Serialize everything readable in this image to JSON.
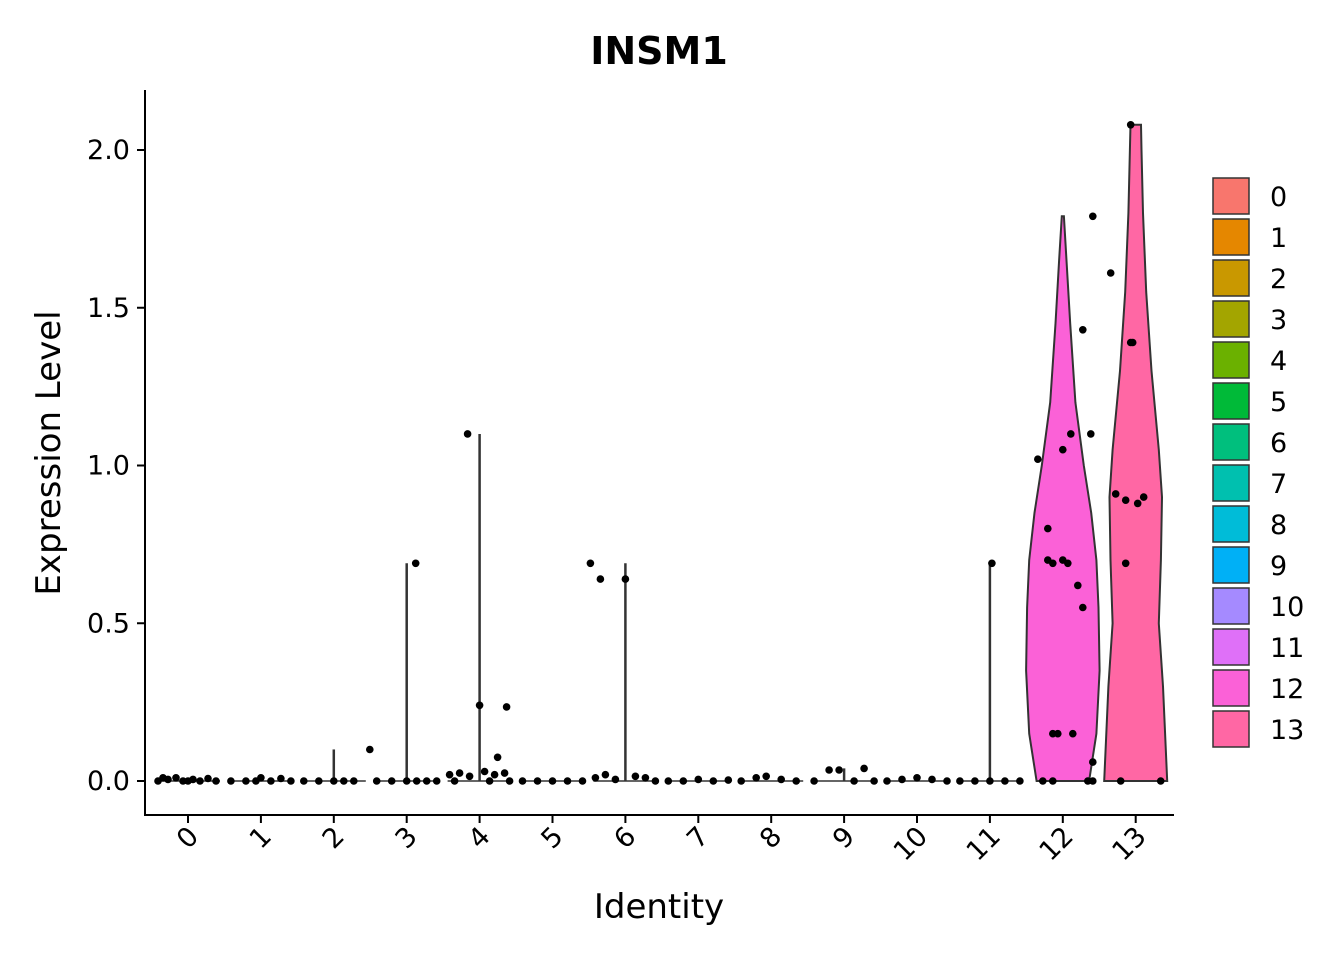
{
  "chart_data": {
    "type": "violin",
    "title": "INSM1",
    "xlabel": "Identity",
    "ylabel": "Expression Level",
    "ylim": [
      -0.11,
      2.19
    ],
    "yticks": [
      0.0,
      0.5,
      1.0,
      1.5,
      2.0
    ],
    "ytick_labels": [
      "0.0",
      "0.5",
      "1.0",
      "1.5",
      "2.0"
    ],
    "legend_placement": "right",
    "grid": false,
    "categories": [
      "0",
      "1",
      "2",
      "3",
      "4",
      "5",
      "6",
      "7",
      "8",
      "9",
      "10",
      "11",
      "12",
      "13"
    ],
    "colors": [
      "#F8766D",
      "#E58700",
      "#C99800",
      "#A3A500",
      "#6BB100",
      "#00BA38",
      "#00BF7D",
      "#00C0AF",
      "#00BCD8",
      "#00B0F6",
      "#A58AFF",
      "#DF70F8",
      "#FB61D7",
      "#FF67A4"
    ],
    "groups": [
      {
        "name": "0",
        "max": 0.01,
        "points": [
          [
            -0.3,
            0
          ],
          [
            -0.2,
            0.005
          ],
          [
            -0.12,
            0.01
          ],
          [
            -0.05,
            0
          ],
          [
            0.05,
            0.005
          ],
          [
            0.12,
            0
          ],
          [
            0.2,
            0.008
          ],
          [
            0.28,
            0
          ],
          [
            -0.25,
            0.01
          ],
          [
            0.0,
            0
          ]
        ]
      },
      {
        "name": "1",
        "max": 0.01,
        "points": [
          [
            -0.3,
            0
          ],
          [
            -0.15,
            0
          ],
          [
            0.0,
            0.01
          ],
          [
            0.1,
            0
          ],
          [
            0.2,
            0.008
          ],
          [
            0.3,
            0
          ],
          [
            -0.05,
            0
          ]
        ]
      },
      {
        "name": "2",
        "max": 0.1,
        "points": [
          [
            -0.3,
            0
          ],
          [
            -0.15,
            0
          ],
          [
            0.0,
            0
          ],
          [
            0.1,
            0
          ],
          [
            0.2,
            0
          ],
          [
            0.36,
            0.1
          ]
        ]
      },
      {
        "name": "3",
        "max": 0.69,
        "points": [
          [
            -0.3,
            0
          ],
          [
            -0.15,
            0
          ],
          [
            0.0,
            0
          ],
          [
            0.1,
            0
          ],
          [
            0.2,
            0
          ],
          [
            0.3,
            0
          ],
          [
            0.09,
            0.69
          ]
        ]
      },
      {
        "name": "4",
        "max": 1.1,
        "points": [
          [
            -0.12,
            1.1
          ],
          [
            0.27,
            0.235
          ],
          [
            0.18,
            0.075
          ],
          [
            0.0,
            0.24
          ],
          [
            -0.3,
            0.02
          ],
          [
            -0.2,
            0.025
          ],
          [
            -0.1,
            0.015
          ],
          [
            0.05,
            0.03
          ],
          [
            0.15,
            0.02
          ],
          [
            0.25,
            0.025
          ],
          [
            0.3,
            0
          ],
          [
            -0.25,
            0
          ],
          [
            0.1,
            0
          ]
        ]
      },
      {
        "name": "5",
        "max": 0.0,
        "points": [
          [
            -0.3,
            0
          ],
          [
            -0.15,
            0
          ],
          [
            0.0,
            0
          ],
          [
            0.15,
            0
          ],
          [
            0.3,
            0
          ]
        ]
      },
      {
        "name": "6",
        "max": 0.69,
        "points": [
          [
            -0.35,
            0.69
          ],
          [
            -0.25,
            0.64
          ],
          [
            0.0,
            0.64
          ],
          [
            -0.3,
            0.01
          ],
          [
            -0.2,
            0.02
          ],
          [
            -0.1,
            0.005
          ],
          [
            0.1,
            0.015
          ],
          [
            0.2,
            0.01
          ],
          [
            0.3,
            0
          ]
        ]
      },
      {
        "name": "7",
        "max": 0.005,
        "points": [
          [
            -0.3,
            0
          ],
          [
            -0.15,
            0
          ],
          [
            0.0,
            0.005
          ],
          [
            0.15,
            0
          ],
          [
            0.3,
            0.003
          ]
        ]
      },
      {
        "name": "8",
        "max": 0.015,
        "points": [
          [
            -0.3,
            0
          ],
          [
            -0.15,
            0.01
          ],
          [
            -0.05,
            0.015
          ],
          [
            0.1,
            0.005
          ],
          [
            0.25,
            0
          ]
        ]
      },
      {
        "name": "9",
        "max": 0.04,
        "points": [
          [
            -0.3,
            0
          ],
          [
            -0.15,
            0.035
          ],
          [
            -0.05,
            0.035
          ],
          [
            0.2,
            0.04
          ],
          [
            0.1,
            0
          ],
          [
            0.3,
            0
          ]
        ]
      },
      {
        "name": "10",
        "max": 0.01,
        "points": [
          [
            -0.3,
            0
          ],
          [
            -0.15,
            0.005
          ],
          [
            0.0,
            0.01
          ],
          [
            0.15,
            0.005
          ],
          [
            0.3,
            0
          ]
        ]
      },
      {
        "name": "11",
        "max": 0.69,
        "points": [
          [
            0.02,
            0.69
          ],
          [
            -0.3,
            0
          ],
          [
            -0.15,
            0
          ],
          [
            0.0,
            0
          ],
          [
            0.15,
            0
          ],
          [
            0.3,
            0
          ]
        ]
      },
      {
        "name": "12",
        "max": 1.79,
        "points": [
          [
            0.3,
            1.79
          ],
          [
            0.2,
            1.43
          ],
          [
            0.08,
            1.1
          ],
          [
            0.28,
            1.1
          ],
          [
            0.0,
            1.05
          ],
          [
            -0.25,
            1.02
          ],
          [
            -0.15,
            0.8
          ],
          [
            -0.15,
            0.7
          ],
          [
            -0.1,
            0.69
          ],
          [
            0.0,
            0.7
          ],
          [
            0.05,
            0.69
          ],
          [
            0.15,
            0.62
          ],
          [
            0.2,
            0.55
          ],
          [
            -0.1,
            0.15
          ],
          [
            -0.05,
            0.15
          ],
          [
            0.1,
            0.15
          ],
          [
            0.3,
            0.06
          ],
          [
            -0.2,
            0
          ],
          [
            -0.1,
            0
          ],
          [
            0.25,
            0
          ],
          [
            0.3,
            0
          ]
        ]
      },
      {
        "name": "13",
        "max": 2.08,
        "points": [
          [
            -0.05,
            2.08
          ],
          [
            -0.25,
            1.61
          ],
          [
            -0.05,
            1.39
          ],
          [
            -0.03,
            1.39
          ],
          [
            -0.2,
            0.91
          ],
          [
            -0.1,
            0.89
          ],
          [
            0.02,
            0.88
          ],
          [
            0.08,
            0.9
          ],
          [
            -0.1,
            0.69
          ],
          [
            -0.15,
            0
          ],
          [
            0.25,
            0
          ]
        ]
      }
    ],
    "violins": {
      "12": [
        [
          0,
          0.25
        ],
        [
          0.15,
          0.32
        ],
        [
          0.35,
          0.35
        ],
        [
          0.55,
          0.34
        ],
        [
          0.7,
          0.32
        ],
        [
          0.85,
          0.27
        ],
        [
          1.0,
          0.2
        ],
        [
          1.2,
          0.12
        ],
        [
          1.45,
          0.07
        ],
        [
          1.65,
          0.035
        ],
        [
          1.79,
          0.01
        ]
      ],
      "13": [
        [
          0,
          0.3
        ],
        [
          0.3,
          0.26
        ],
        [
          0.5,
          0.22
        ],
        [
          0.7,
          0.24
        ],
        [
          0.9,
          0.25
        ],
        [
          1.05,
          0.22
        ],
        [
          1.3,
          0.15
        ],
        [
          1.55,
          0.1
        ],
        [
          1.8,
          0.07
        ],
        [
          2.0,
          0.055
        ],
        [
          2.08,
          0.05
        ]
      ]
    }
  }
}
